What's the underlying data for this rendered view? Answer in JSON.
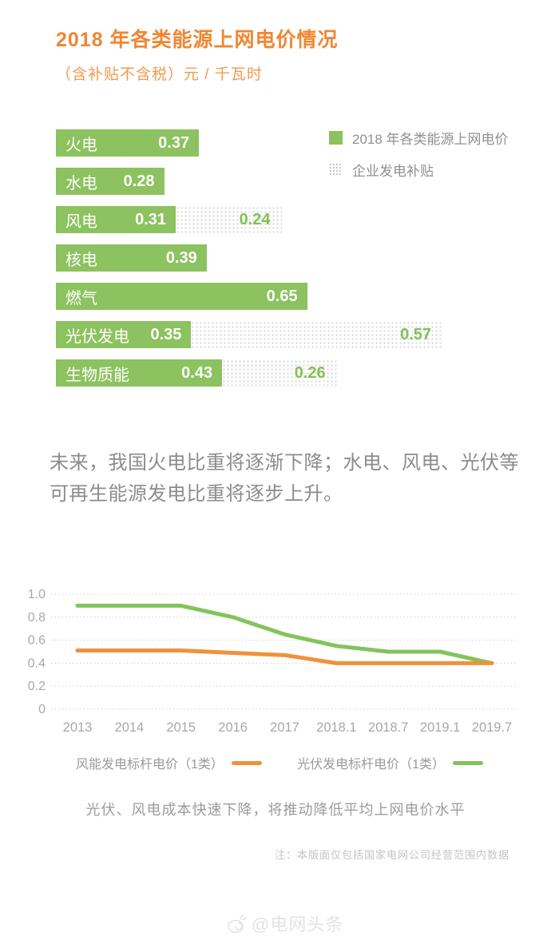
{
  "header": {
    "title": "2018 年各类能源上网电价情况",
    "subtitle": "（含补贴不含税）元 / 千瓦时"
  },
  "chart_data": [
    {
      "type": "bar",
      "orientation": "horizontal",
      "title": "2018 年各类能源上网电价情况",
      "unit_label": "（含补贴不含税）元 / 千瓦时",
      "categories": [
        "火电",
        "水电",
        "风电",
        "核电",
        "燃气",
        "光伏发电",
        "生物质能"
      ],
      "series": [
        {
          "name": "2018 年各类能源上网电价",
          "color": "#8CC25F",
          "style": "solid",
          "values": [
            0.37,
            0.28,
            0.31,
            0.39,
            0.65,
            0.35,
            0.43
          ]
        },
        {
          "name": "企业发电补贴",
          "color": "#D7D7D7",
          "style": "dotted",
          "value_color": "#82C155",
          "values": [
            null,
            null,
            0.24,
            null,
            null,
            0.57,
            0.26
          ]
        }
      ],
      "xlim": [
        0,
        1.0
      ],
      "legend_position": "top-right"
    },
    {
      "type": "line",
      "x": [
        "2013",
        "2014",
        "2015",
        "2016",
        "2017",
        "2018.1",
        "2018.7",
        "2019.1",
        "2019.7"
      ],
      "series": [
        {
          "name": "风能发电标杆电价（1类）",
          "color": "#F0913C",
          "values": [
            0.51,
            0.51,
            0.51,
            0.49,
            0.47,
            0.4,
            0.4,
            0.4,
            0.4
          ]
        },
        {
          "name": "光伏发电标杆电价（1类）",
          "color": "#82C45C",
          "values": [
            0.9,
            0.9,
            0.9,
            0.8,
            0.65,
            0.55,
            0.5,
            0.5,
            0.4
          ]
        }
      ],
      "ylim": [
        0,
        1.0
      ],
      "yticks": [
        0,
        0.2,
        0.4,
        0.6,
        0.8,
        1.0
      ],
      "grid": "dotted-horizontal",
      "legend_position": "bottom"
    }
  ],
  "paragraph": {
    "text": "未来，我国火电比重将逐渐下降；水电、风电、光伏等可再生能源发电比重将逐步上升。"
  },
  "caption": {
    "text": "光伏、风电成本快速下降，将推动降低平均上网电价水平"
  },
  "note": {
    "text": "注：本版面仅包括国家电网公司经营范围内数据"
  },
  "watermark": {
    "text": "@电网头条",
    "logo": "snail-media-logo"
  },
  "colors": {
    "accent_orange": "#F08632",
    "bar_green": "#8CC25F",
    "line_orange": "#F0913C",
    "line_green": "#82C45C",
    "text_gray": "#8C8C8C",
    "axis_gray": "#A8A8A8"
  }
}
